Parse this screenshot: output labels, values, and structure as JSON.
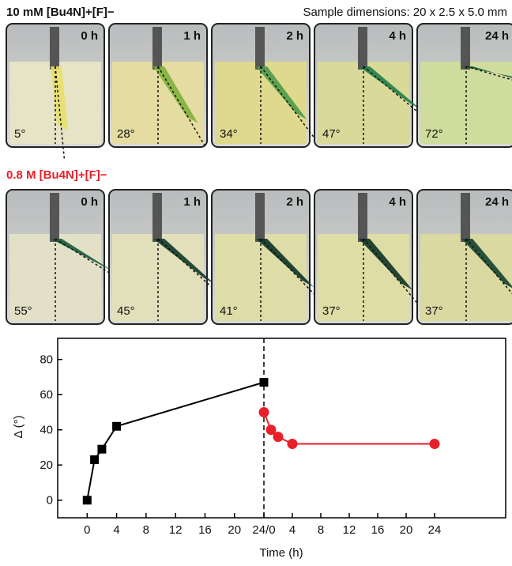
{
  "header": {
    "row1_title": "10 mM [Bu4N]+[F]−",
    "dimensions": "Sample dimensions: 20 x 2.5 x 5.0 mm",
    "row2_title": "0.8 M [Bu4N]+[F]−"
  },
  "panels": [
    {
      "times": [
        "0 h",
        "1 h",
        "2 h",
        "4 h",
        "24 h"
      ],
      "angles": [
        "5°",
        "28°",
        "34°",
        "47°",
        "72°"
      ]
    },
    {
      "times": [
        "0 h",
        "1 h",
        "2 h",
        "4 h",
        "24 h"
      ],
      "angles": [
        "55°",
        "45°",
        "41°",
        "37°",
        "37°"
      ]
    }
  ],
  "chart_data": {
    "type": "scatter",
    "x_label": "Time (h)",
    "y_label": "Δ (°)",
    "xlim": [
      -4,
      24
    ],
    "x2lim": [
      0,
      34
    ],
    "xticks": [
      0,
      4,
      8,
      12,
      16,
      20,
      {
        "value": 24,
        "label": "24/0"
      }
    ],
    "x2ticks": [
      4,
      8,
      12,
      16,
      20,
      24
    ],
    "ylim": [
      -10,
      92
    ],
    "yticks": [
      0,
      20,
      40,
      60,
      80
    ],
    "series": [
      {
        "color": "#000000",
        "marker": "square",
        "x": [
          0,
          1,
          2,
          4,
          24
        ],
        "values": [
          0,
          23,
          29,
          42,
          67
        ]
      },
      {
        "color": "#e8202a",
        "marker": "circle",
        "x": [
          0,
          1,
          2,
          4,
          24
        ],
        "values": [
          50,
          40,
          36,
          32,
          32
        ]
      }
    ]
  }
}
